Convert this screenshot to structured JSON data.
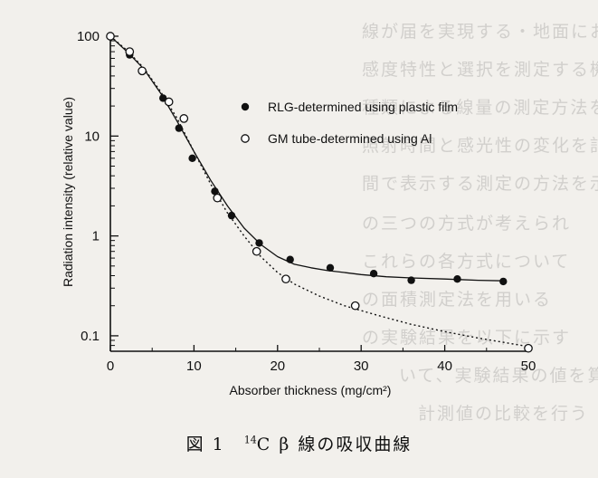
{
  "caption": {
    "prefix": "図 1",
    "isotope_mass": "14",
    "suffix": "C β 線の吸収曲線"
  },
  "chart_data": {
    "type": "scatter",
    "title": "",
    "xlabel": "Absorber thickness (mg/cm²)",
    "ylabel": "Radiation intensity (relative value)",
    "xlim": [
      0,
      50
    ],
    "ylim": [
      0.07,
      100
    ],
    "yscale": "log",
    "xticks": [
      "0",
      "10",
      "20",
      "30",
      "40",
      "50"
    ],
    "yticks": [
      "100",
      "10",
      "1",
      "0.1"
    ],
    "legend_position": "top-right",
    "series": [
      {
        "name": "RLG-determined using plastic film",
        "marker": "filled-circle",
        "curve": "solid",
        "x": [
          0,
          2.3,
          3.8,
          6.3,
          8.2,
          9.8,
          12.5,
          14.5,
          17.8,
          21.5,
          26.3,
          31.5,
          36,
          41.5,
          47
        ],
        "y": [
          100,
          65,
          45,
          24,
          12,
          6.0,
          2.8,
          1.6,
          0.85,
          0.58,
          0.48,
          0.42,
          0.36,
          0.37,
          0.35
        ],
        "curve_x": [
          0,
          2,
          4,
          6,
          8,
          10,
          12,
          14,
          16,
          18,
          20,
          22,
          24,
          26,
          28,
          30,
          33,
          36,
          40,
          44,
          47
        ],
        "curve_y": [
          100,
          70,
          47,
          27,
          14,
          7.0,
          3.6,
          2.0,
          1.2,
          0.82,
          0.62,
          0.52,
          0.48,
          0.45,
          0.43,
          0.41,
          0.39,
          0.38,
          0.37,
          0.36,
          0.355
        ]
      },
      {
        "name": "GM tube-determined using Al",
        "marker": "open-circle",
        "curve": "dotted",
        "x": [
          0,
          2.3,
          3.8,
          7,
          8.8,
          12.8,
          17.5,
          21,
          29.3,
          50
        ],
        "y": [
          100,
          70,
          45,
          22,
          15,
          2.4,
          0.7,
          0.37,
          0.2,
          0.075
        ],
        "curve_x": [
          0,
          2,
          4,
          6,
          8,
          10,
          12,
          14,
          16,
          18,
          20,
          22,
          25,
          28,
          32,
          36,
          40,
          44,
          50
        ],
        "curve_y": [
          100,
          72,
          48,
          28,
          15,
          7.0,
          3.3,
          1.7,
          1.0,
          0.62,
          0.43,
          0.33,
          0.25,
          0.2,
          0.16,
          0.13,
          0.11,
          0.095,
          0.078
        ]
      }
    ]
  }
}
